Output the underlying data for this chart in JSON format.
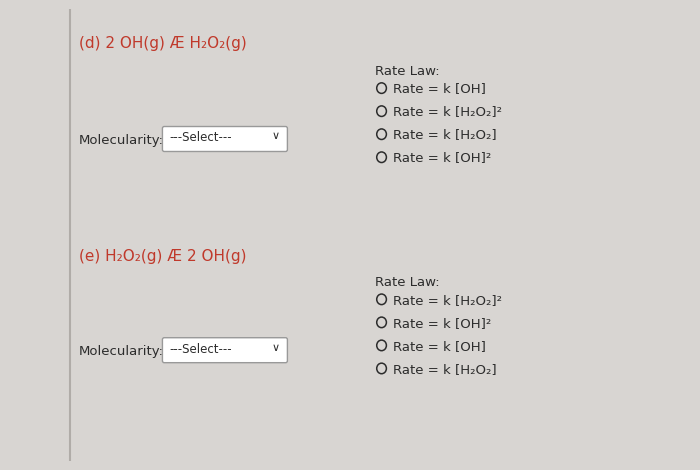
{
  "bg_color": "#d8d5d2",
  "panel_color": "#edeae7",
  "text_color_red": "#c0392b",
  "text_color_dark": "#2c2c2c",
  "fig_width": 7.0,
  "fig_height": 4.7,
  "dpi": 100,
  "section_d": {
    "reaction": "(d) 2 OH(g) Æ H₂O₂(g)",
    "molecularity_label": "Molecularity:",
    "dropdown_text": "---Select---",
    "rate_law_label": "Rate Law:",
    "options": [
      "Rate = k [OH]",
      "Rate = k [H₂O₂]²",
      "Rate = k [H₂O₂]",
      "Rate = k [OH]²"
    ]
  },
  "section_e": {
    "reaction": "(e) H₂O₂(g) Æ 2 OH(g)",
    "molecularity_label": "Molecularity:",
    "dropdown_text": "---Select---",
    "rate_law_label": "Rate Law:",
    "options": [
      "Rate = k [H₂O₂]²",
      "Rate = k [OH]²",
      "Rate = k [OH]",
      "Rate = k [H₂O₂]"
    ]
  }
}
